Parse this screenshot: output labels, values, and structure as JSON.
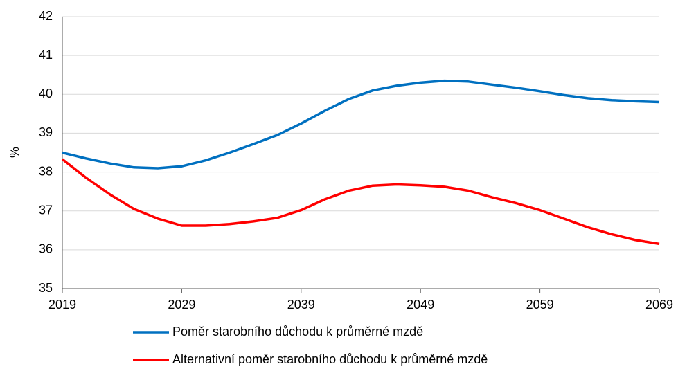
{
  "chart_data": {
    "type": "line",
    "y_label": "%",
    "x": [
      2019,
      2021,
      2023,
      2025,
      2027,
      2029,
      2031,
      2033,
      2035,
      2037,
      2039,
      2041,
      2043,
      2045,
      2047,
      2049,
      2051,
      2053,
      2055,
      2057,
      2059,
      2061,
      2063,
      2065,
      2067,
      2069
    ],
    "series": [
      {
        "name": "Poměr starobního důchodu k průměrné mzdě",
        "color": "#0070c0",
        "values": [
          38.5,
          38.35,
          38.22,
          38.12,
          38.1,
          38.15,
          38.3,
          38.5,
          38.72,
          38.95,
          39.25,
          39.58,
          39.88,
          40.1,
          40.22,
          40.3,
          40.35,
          40.33,
          40.25,
          40.17,
          40.08,
          39.98,
          39.9,
          39.85,
          39.82,
          39.8
        ]
      },
      {
        "name": "Alternativní poměr starobního důchodu k průměrné mzdě",
        "color": "#ff0000",
        "values": [
          38.33,
          37.85,
          37.42,
          37.05,
          36.8,
          36.62,
          36.62,
          36.66,
          36.73,
          36.82,
          37.02,
          37.3,
          37.52,
          37.65,
          37.68,
          37.66,
          37.62,
          37.52,
          37.35,
          37.2,
          37.02,
          36.8,
          36.58,
          36.4,
          36.25,
          36.15
        ]
      }
    ],
    "xlim": [
      2019,
      2069
    ],
    "xticks": [
      2019,
      2029,
      2039,
      2049,
      2059,
      2069
    ],
    "ylim": [
      35,
      42
    ],
    "yticks": [
      35,
      36,
      37,
      38,
      39,
      40,
      41,
      42
    ],
    "grid": true
  }
}
